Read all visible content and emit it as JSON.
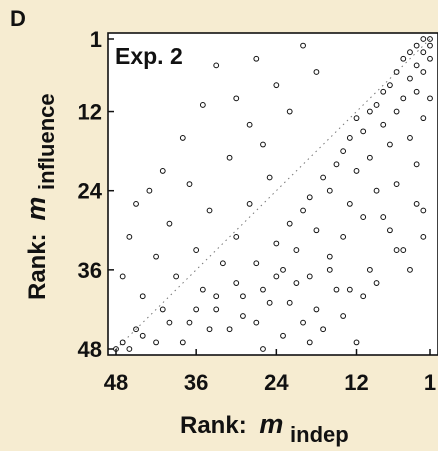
{
  "panel_letter": "D",
  "chart_data": {
    "type": "scatter",
    "title": "Exp. 2",
    "xlabel": {
      "prefix": "Rank:",
      "var": "m",
      "sub": "indep"
    },
    "ylabel": {
      "prefix": "Rank:",
      "var": "m",
      "sub": "influence"
    },
    "xlim": [
      48,
      1
    ],
    "ylim": [
      1,
      48
    ],
    "x_reversed": true,
    "y_reversed": true,
    "xticks": [
      48,
      36,
      24,
      12,
      1
    ],
    "yticks": [
      1,
      12,
      24,
      36,
      48
    ],
    "diagonal": {
      "from": [
        48,
        48
      ],
      "to": [
        1,
        1
      ],
      "style": "dotted"
    },
    "marker": "open-circle",
    "grid": false,
    "points": [
      [
        1,
        1
      ],
      [
        2,
        1
      ],
      [
        1,
        2
      ],
      [
        3,
        2
      ],
      [
        2,
        3
      ],
      [
        4,
        3
      ],
      [
        1,
        4
      ],
      [
        3,
        5
      ],
      [
        5,
        4
      ],
      [
        6,
        6
      ],
      [
        2,
        6
      ],
      [
        4,
        7
      ],
      [
        7,
        8
      ],
      [
        3,
        9
      ],
      [
        8,
        9
      ],
      [
        1,
        10
      ],
      [
        5,
        10
      ],
      [
        9,
        11
      ],
      [
        6,
        12
      ],
      [
        10,
        12
      ],
      [
        2,
        13
      ],
      [
        12,
        13
      ],
      [
        8,
        14
      ],
      [
        11,
        15
      ],
      [
        4,
        16
      ],
      [
        13,
        16
      ],
      [
        7,
        17
      ],
      [
        14,
        18
      ],
      [
        10,
        19
      ],
      [
        3,
        20
      ],
      [
        15,
        20
      ],
      [
        12,
        21
      ],
      [
        17,
        22
      ],
      [
        6,
        23
      ],
      [
        9,
        24
      ],
      [
        16,
        24
      ],
      [
        19,
        25
      ],
      [
        13,
        26
      ],
      [
        2,
        27
      ],
      [
        20,
        27
      ],
      [
        11,
        28
      ],
      [
        22,
        29
      ],
      [
        7,
        30
      ],
      [
        18,
        30
      ],
      [
        14,
        31
      ],
      [
        24,
        32
      ],
      [
        5,
        33
      ],
      [
        21,
        33
      ],
      [
        16,
        34
      ],
      [
        27,
        35
      ],
      [
        10,
        36
      ],
      [
        23,
        36
      ],
      [
        19,
        37
      ],
      [
        30,
        38
      ],
      [
        13,
        39
      ],
      [
        26,
        39
      ],
      [
        33,
        40
      ],
      [
        22,
        41
      ],
      [
        36,
        42
      ],
      [
        29,
        43
      ],
      [
        40,
        44
      ],
      [
        34,
        45
      ],
      [
        44,
        46
      ],
      [
        38,
        47
      ],
      [
        47,
        47
      ],
      [
        46,
        48
      ],
      [
        48,
        48
      ],
      [
        20,
        2
      ],
      [
        27,
        4
      ],
      [
        18,
        6
      ],
      [
        24,
        8
      ],
      [
        30,
        10
      ],
      [
        33,
        5
      ],
      [
        22,
        12
      ],
      [
        28,
        14
      ],
      [
        35,
        11
      ],
      [
        26,
        17
      ],
      [
        31,
        19
      ],
      [
        38,
        16
      ],
      [
        41,
        21
      ],
      [
        25,
        22
      ],
      [
        37,
        23
      ],
      [
        43,
        24
      ],
      [
        28,
        26
      ],
      [
        34,
        27
      ],
      [
        45,
        26
      ],
      [
        40,
        29
      ],
      [
        30,
        31
      ],
      [
        46,
        31
      ],
      [
        36,
        33
      ],
      [
        42,
        34
      ],
      [
        32,
        35
      ],
      [
        39,
        37
      ],
      [
        47,
        37
      ],
      [
        35,
        39
      ],
      [
        44,
        40
      ],
      [
        41,
        42
      ],
      [
        37,
        44
      ],
      [
        45,
        45
      ],
      [
        42,
        47
      ],
      [
        3,
        26
      ],
      [
        8,
        28
      ],
      [
        2,
        31
      ],
      [
        6,
        33
      ],
      [
        4,
        36
      ],
      [
        9,
        38
      ],
      [
        11,
        40
      ],
      [
        14,
        43
      ],
      [
        17,
        45
      ],
      [
        12,
        47
      ],
      [
        20,
        44
      ],
      [
        23,
        46
      ],
      [
        15,
        39
      ],
      [
        25,
        41
      ],
      [
        18,
        42
      ],
      [
        27,
        44
      ],
      [
        21,
        38
      ],
      [
        29,
        40
      ],
      [
        16,
        36
      ],
      [
        24,
        37
      ],
      [
        31,
        45
      ],
      [
        33,
        42
      ],
      [
        26,
        48
      ],
      [
        19,
        47
      ]
    ]
  }
}
